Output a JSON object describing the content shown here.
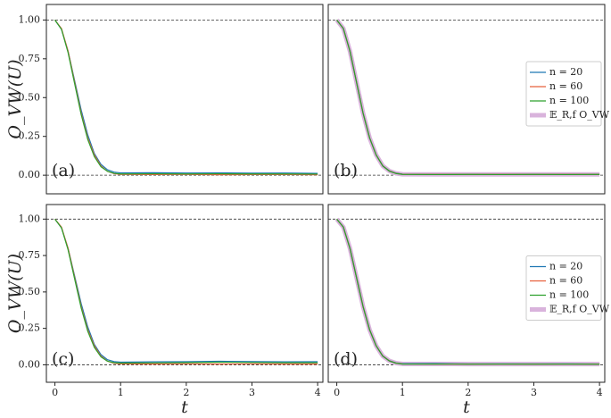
{
  "chart_data": [
    {
      "type": "line",
      "label": "(a)",
      "ylabel": "O_VW(U)",
      "x": [
        0,
        0.1,
        0.2,
        0.3,
        0.4,
        0.5,
        0.6,
        0.7,
        0.8,
        0.9,
        1,
        1.5,
        2,
        2.5,
        3,
        3.5,
        4
      ],
      "series": [
        {
          "name": "n = 20",
          "color": "#1f77b4",
          "width": 1.2,
          "values": [
            1,
            0.94,
            0.8,
            0.61,
            0.42,
            0.26,
            0.14,
            0.07,
            0.035,
            0.02,
            0.015,
            0.016,
            0.014,
            0.015,
            0.013,
            0.014,
            0.012
          ]
        },
        {
          "name": "n = 60",
          "color": "#e8603c",
          "width": 1.2,
          "values": [
            1,
            0.945,
            0.8,
            0.6,
            0.4,
            0.24,
            0.13,
            0.06,
            0.025,
            0.01,
            0.005,
            0.004,
            0.005,
            0.003,
            0.004,
            0.004,
            0.003
          ]
        },
        {
          "name": "n = 100",
          "color": "#2ca02c",
          "width": 1.2,
          "values": [
            1,
            0.94,
            0.79,
            0.59,
            0.39,
            0.23,
            0.12,
            0.055,
            0.025,
            0.012,
            0.008,
            0.009,
            0.008,
            0.009,
            0.008,
            0.008,
            0.007
          ]
        }
      ],
      "xlim": [
        -0.13,
        4.08
      ],
      "ylim": [
        -0.12,
        1.1
      ],
      "yticks": [
        {
          "value": 0,
          "label": "0.00"
        },
        {
          "value": 0.25,
          "label": "0.25"
        },
        {
          "value": 0.5,
          "label": "0.50"
        },
        {
          "value": 0.75,
          "label": "0.75"
        },
        {
          "value": 1,
          "label": "1.00"
        }
      ],
      "hlines": [
        1,
        0
      ]
    },
    {
      "type": "line",
      "label": "(b)",
      "x": [
        0,
        0.1,
        0.2,
        0.3,
        0.4,
        0.5,
        0.6,
        0.7,
        0.8,
        0.9,
        1,
        1.5,
        2,
        2.5,
        3,
        3.5,
        4
      ],
      "series": [
        {
          "name": "𝔼_R,f O_VW",
          "color": "#d9b3dc",
          "width": 5,
          "values": [
            1,
            0.945,
            0.8,
            0.6,
            0.4,
            0.24,
            0.13,
            0.06,
            0.027,
            0.012,
            0.006,
            0.005,
            0.005,
            0.005,
            0.005,
            0.005,
            0.005
          ]
        },
        {
          "name": "n = 20",
          "color": "#1f77b4",
          "width": 1.2,
          "values": [
            1,
            0.945,
            0.8,
            0.6,
            0.4,
            0.24,
            0.13,
            0.06,
            0.028,
            0.013,
            0.007,
            0.006,
            0.005,
            0.006,
            0.005,
            0.006,
            0.005
          ]
        },
        {
          "name": "n = 60",
          "color": "#e8603c",
          "width": 1.2,
          "values": [
            1,
            0.945,
            0.8,
            0.6,
            0.4,
            0.24,
            0.13,
            0.06,
            0.027,
            0.012,
            0.006,
            0.005,
            0.005,
            0.005,
            0.005,
            0.005,
            0.005
          ]
        },
        {
          "name": "n = 100",
          "color": "#2ca02c",
          "width": 1.2,
          "values": [
            1,
            0.945,
            0.8,
            0.6,
            0.4,
            0.24,
            0.13,
            0.06,
            0.026,
            0.011,
            0.005,
            0.004,
            0.005,
            0.004,
            0.005,
            0.004,
            0.005
          ]
        }
      ],
      "xlim": [
        -0.13,
        4.08
      ],
      "ylim": [
        -0.12,
        1.1
      ],
      "legend": "right",
      "hlines": [
        1,
        0
      ]
    },
    {
      "type": "line",
      "label": "(c)",
      "ylabel": "O_VW(U)",
      "xlabel": "t",
      "x": [
        0,
        0.1,
        0.2,
        0.3,
        0.4,
        0.5,
        0.6,
        0.7,
        0.8,
        0.9,
        1,
        1.5,
        2,
        2.5,
        3,
        3.5,
        4
      ],
      "series": [
        {
          "name": "n = 20",
          "color": "#1f77b4",
          "width": 1.2,
          "values": [
            1,
            0.94,
            0.8,
            0.61,
            0.42,
            0.26,
            0.14,
            0.07,
            0.035,
            0.022,
            0.018,
            0.02,
            0.021,
            0.024,
            0.022,
            0.02,
            0.021
          ]
        },
        {
          "name": "n = 60",
          "color": "#e8603c",
          "width": 1.2,
          "values": [
            1,
            0.945,
            0.8,
            0.6,
            0.4,
            0.24,
            0.13,
            0.06,
            0.025,
            0.01,
            0.006,
            0.005,
            0.006,
            0.005,
            0.006,
            0.005,
            0.005
          ]
        },
        {
          "name": "n = 100",
          "color": "#2ca02c",
          "width": 1.2,
          "values": [
            1,
            0.94,
            0.79,
            0.59,
            0.39,
            0.23,
            0.12,
            0.055,
            0.025,
            0.014,
            0.012,
            0.013,
            0.015,
            0.018,
            0.016,
            0.014,
            0.014
          ]
        }
      ],
      "xlim": [
        -0.13,
        4.08
      ],
      "ylim": [
        -0.12,
        1.1
      ],
      "xticks": [
        0,
        1,
        2,
        3,
        4
      ],
      "yticks": [
        {
          "value": 0,
          "label": "0.00"
        },
        {
          "value": 0.25,
          "label": "0.25"
        },
        {
          "value": 0.5,
          "label": "0.50"
        },
        {
          "value": 0.75,
          "label": "0.75"
        },
        {
          "value": 1,
          "label": "1.00"
        }
      ],
      "hlines": [
        1,
        0
      ]
    },
    {
      "type": "line",
      "label": "(d)",
      "xlabel": "t",
      "x": [
        0,
        0.1,
        0.2,
        0.3,
        0.4,
        0.5,
        0.6,
        0.7,
        0.8,
        0.9,
        1,
        1.5,
        2,
        2.5,
        3,
        3.5,
        4
      ],
      "series": [
        {
          "name": "𝔼_R,f O_VW",
          "color": "#d9b3dc",
          "width": 5,
          "values": [
            1,
            0.945,
            0.8,
            0.6,
            0.4,
            0.24,
            0.13,
            0.06,
            0.027,
            0.012,
            0.006,
            0.006,
            0.005,
            0.005,
            0.005,
            0.005,
            0.005
          ]
        },
        {
          "name": "n = 20",
          "color": "#1f77b4",
          "width": 1.2,
          "values": [
            1,
            0.945,
            0.8,
            0.6,
            0.4,
            0.24,
            0.13,
            0.06,
            0.028,
            0.013,
            0.007,
            0.008,
            0.006,
            0.006,
            0.006,
            0.006,
            0.005
          ]
        },
        {
          "name": "n = 60",
          "color": "#e8603c",
          "width": 1.2,
          "values": [
            1,
            0.945,
            0.8,
            0.6,
            0.4,
            0.24,
            0.13,
            0.06,
            0.027,
            0.012,
            0.006,
            0.005,
            0.005,
            0.005,
            0.005,
            0.005,
            0.005
          ]
        },
        {
          "name": "n = 100",
          "color": "#2ca02c",
          "width": 1.2,
          "values": [
            1,
            0.945,
            0.8,
            0.6,
            0.4,
            0.24,
            0.13,
            0.06,
            0.026,
            0.011,
            0.005,
            0.005,
            0.004,
            0.005,
            0.004,
            0.005,
            0.004
          ]
        }
      ],
      "xlim": [
        -0.13,
        4.08
      ],
      "ylim": [
        -0.12,
        1.1
      ],
      "xticks": [
        0,
        1,
        2,
        3,
        4
      ],
      "legend": "right",
      "hlines": [
        1,
        0
      ]
    }
  ]
}
